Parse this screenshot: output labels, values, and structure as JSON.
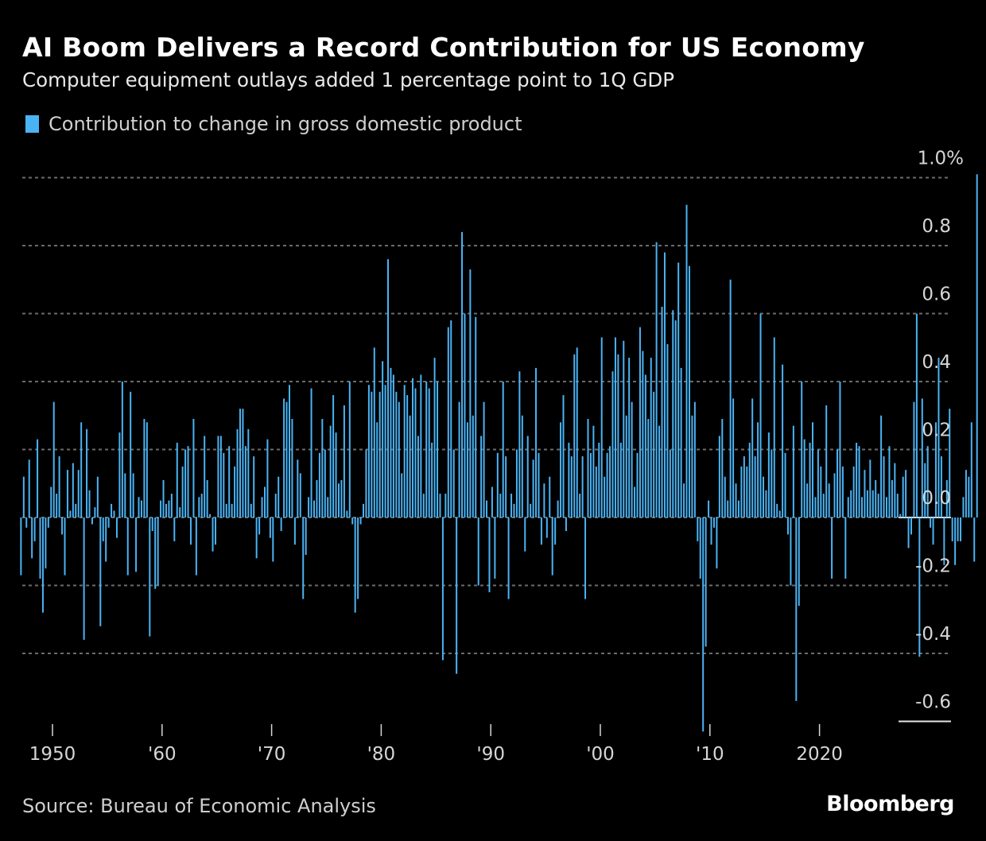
{
  "header": {
    "title": "AI Boom Delivers a Record Contribution for US Economy",
    "subtitle": "Computer equipment outlays added 1 percentage point to 1Q GDP"
  },
  "legend": {
    "label": "Contribution to change in gross domestic product",
    "color": "#4ab3f4"
  },
  "footer": {
    "source": "Source: Bureau of Economic Analysis",
    "brand": "Bloomberg"
  },
  "colors": {
    "background": "#000000",
    "bar": "#4ab3f4",
    "grid": "#6b6b6b",
    "axis_text": "#d6d6d6"
  },
  "chart_data": {
    "type": "bar",
    "title": "AI Boom Delivers a Record Contribution for US Economy",
    "subtitle": "Computer equipment outlays added 1 percentage point to 1Q GDP",
    "xlabel": "",
    "ylabel": "Contribution to change in gross domestic product (percentage points)",
    "frequency": "quarterly",
    "start": "1947 Q1",
    "end": "2025 Q1",
    "ylim": [
      -0.6,
      1.0
    ],
    "yticks": [
      {
        "value": 1.0,
        "label": "1.0%"
      },
      {
        "value": 0.8,
        "label": "0.8"
      },
      {
        "value": 0.6,
        "label": "0.6"
      },
      {
        "value": 0.4,
        "label": "0.4"
      },
      {
        "value": 0.2,
        "label": "0.2"
      },
      {
        "value": 0.0,
        "label": "0.0"
      },
      {
        "value": -0.2,
        "label": "-0.2"
      },
      {
        "value": -0.4,
        "label": "-0.4"
      },
      {
        "value": -0.6,
        "label": "-0.6"
      }
    ],
    "xticks": [
      {
        "year": 1950,
        "label": "1950"
      },
      {
        "year": 1960,
        "label": "'60"
      },
      {
        "year": 1970,
        "label": "'70"
      },
      {
        "year": 1980,
        "label": "'80"
      },
      {
        "year": 1990,
        "label": "'90"
      },
      {
        "year": 2000,
        "label": "'00"
      },
      {
        "year": 2010,
        "label": "'10"
      },
      {
        "year": 2020,
        "label": "2020"
      }
    ],
    "grid": true,
    "legend_position": "top-left",
    "series": [
      {
        "name": "Contribution to change in gross domestic product",
        "values": [
          -0.17,
          0.12,
          -0.03,
          0.17,
          -0.12,
          -0.07,
          0.23,
          -0.18,
          -0.28,
          -0.15,
          -0.03,
          0.09,
          0.34,
          0.07,
          0.18,
          -0.05,
          -0.17,
          0.14,
          0.02,
          0.16,
          0.04,
          0.14,
          0.28,
          -0.36,
          0.26,
          0.08,
          -0.02,
          0.03,
          0.12,
          -0.32,
          -0.07,
          -0.13,
          -0.03,
          0.04,
          0.02,
          -0.06,
          0.25,
          0.4,
          0.13,
          -0.17,
          0.37,
          0.13,
          -0.16,
          0.06,
          0.05,
          0.29,
          0.28,
          -0.35,
          -0.04,
          -0.21,
          -0.2,
          0.05,
          0.11,
          0.04,
          0.05,
          0.07,
          -0.07,
          0.22,
          0.03,
          0.15,
          0.2,
          0.21,
          -0.08,
          0.29,
          -0.17,
          0.06,
          0.07,
          0.24,
          0.11,
          0.01,
          -0.1,
          -0.08,
          0.24,
          0.24,
          0.19,
          0.04,
          0.21,
          0.04,
          0.15,
          0.26,
          0.32,
          0.32,
          0.21,
          0.26,
          0.04,
          0.18,
          -0.12,
          -0.05,
          0.06,
          0.09,
          0.23,
          -0.06,
          -0.13,
          0.07,
          0.12,
          -0.04,
          0.35,
          0.34,
          0.39,
          0.29,
          -0.08,
          0.17,
          0.13,
          -0.24,
          -0.11,
          0.06,
          0.38,
          0.05,
          0.11,
          0.19,
          0.29,
          0.2,
          0.06,
          0.27,
          0.36,
          0.25,
          0.1,
          0.11,
          0.33,
          0.02,
          0.4,
          -0.02,
          -0.28,
          -0.24,
          -0.02,
          0.04,
          0.2,
          0.39,
          0.37,
          0.5,
          0.28,
          0.37,
          0.46,
          0.39,
          0.76,
          0.44,
          0.42,
          0.37,
          0.34,
          0.13,
          0.39,
          0.36,
          0.3,
          0.41,
          0.38,
          0.24,
          0.42,
          0.07,
          0.4,
          0.38,
          0.22,
          0.47,
          0.4,
          0.07,
          -0.42,
          0.07,
          0.56,
          0.58,
          0.2,
          -0.46,
          0.34,
          0.84,
          0.6,
          0.28,
          0.73,
          0.3,
          0.59,
          -0.2,
          0.24,
          0.34,
          0.05,
          -0.22,
          0.09,
          -0.18,
          0.19,
          0.07,
          0.4,
          0.18,
          -0.24,
          0.07,
          0.04,
          0.2,
          0.43,
          0.3,
          -0.1,
          0.24,
          0.04,
          0.17,
          0.44,
          0.19,
          -0.08,
          0.1,
          -0.06,
          0.12,
          -0.17,
          -0.08,
          0.05,
          0.28,
          0.36,
          -0.04,
          0.22,
          0.18,
          0.48,
          0.5,
          0.07,
          0.18,
          -0.24,
          0.29,
          0.19,
          0.27,
          0.15,
          0.22,
          0.53,
          0.12,
          0.19,
          0.21,
          0.43,
          0.53,
          0.48,
          0.22,
          0.52,
          0.3,
          0.47,
          0.34,
          0.09,
          0.19,
          0.56,
          0.49,
          0.42,
          0.29,
          0.47,
          0.37,
          0.81,
          0.27,
          0.62,
          0.78,
          0.51,
          0.2,
          0.61,
          0.58,
          0.75,
          0.44,
          0.1,
          0.92,
          0.74,
          0.3,
          0.34,
          -0.07,
          -0.18,
          -0.63,
          -0.38,
          0.05,
          -0.08,
          -0.03,
          -0.15,
          0.24,
          0.29,
          0.12,
          0.05,
          0.7,
          0.35,
          0.1,
          0.05,
          0.15,
          0.18,
          0.15,
          0.22,
          0.35,
          0.18,
          0.28,
          0.6,
          0.12,
          0.08,
          0.25,
          0.2,
          0.53,
          0.04,
          0.02,
          0.45,
          0.19,
          -0.05,
          -0.2,
          0.27,
          -0.54,
          -0.26,
          0.4,
          0.23,
          0.1,
          0.22,
          0.28,
          0.06,
          0.2,
          0.15,
          0.07,
          0.33,
          0.1,
          -0.18,
          0.13,
          0.2,
          0.4,
          0.15,
          -0.18,
          0.06,
          0.08,
          0.15,
          0.22,
          0.21,
          0.06,
          0.14,
          0.08,
          0.17,
          0.08,
          0.11,
          0.07,
          0.3,
          0.18,
          0.06,
          0.21,
          0.11,
          0.16,
          0.07,
          0.01,
          0.12,
          0.14,
          -0.09,
          -0.05,
          0.34,
          0.6,
          -0.41,
          0.35,
          0.16,
          0.21,
          -0.03,
          -0.08,
          0.28,
          0.47,
          0.18,
          -0.14,
          0.11,
          0.32,
          -0.07,
          -0.14,
          -0.07,
          -0.07,
          0.06,
          0.14,
          0.12,
          0.28,
          -0.13,
          1.01
        ]
      }
    ],
    "annotations": []
  }
}
